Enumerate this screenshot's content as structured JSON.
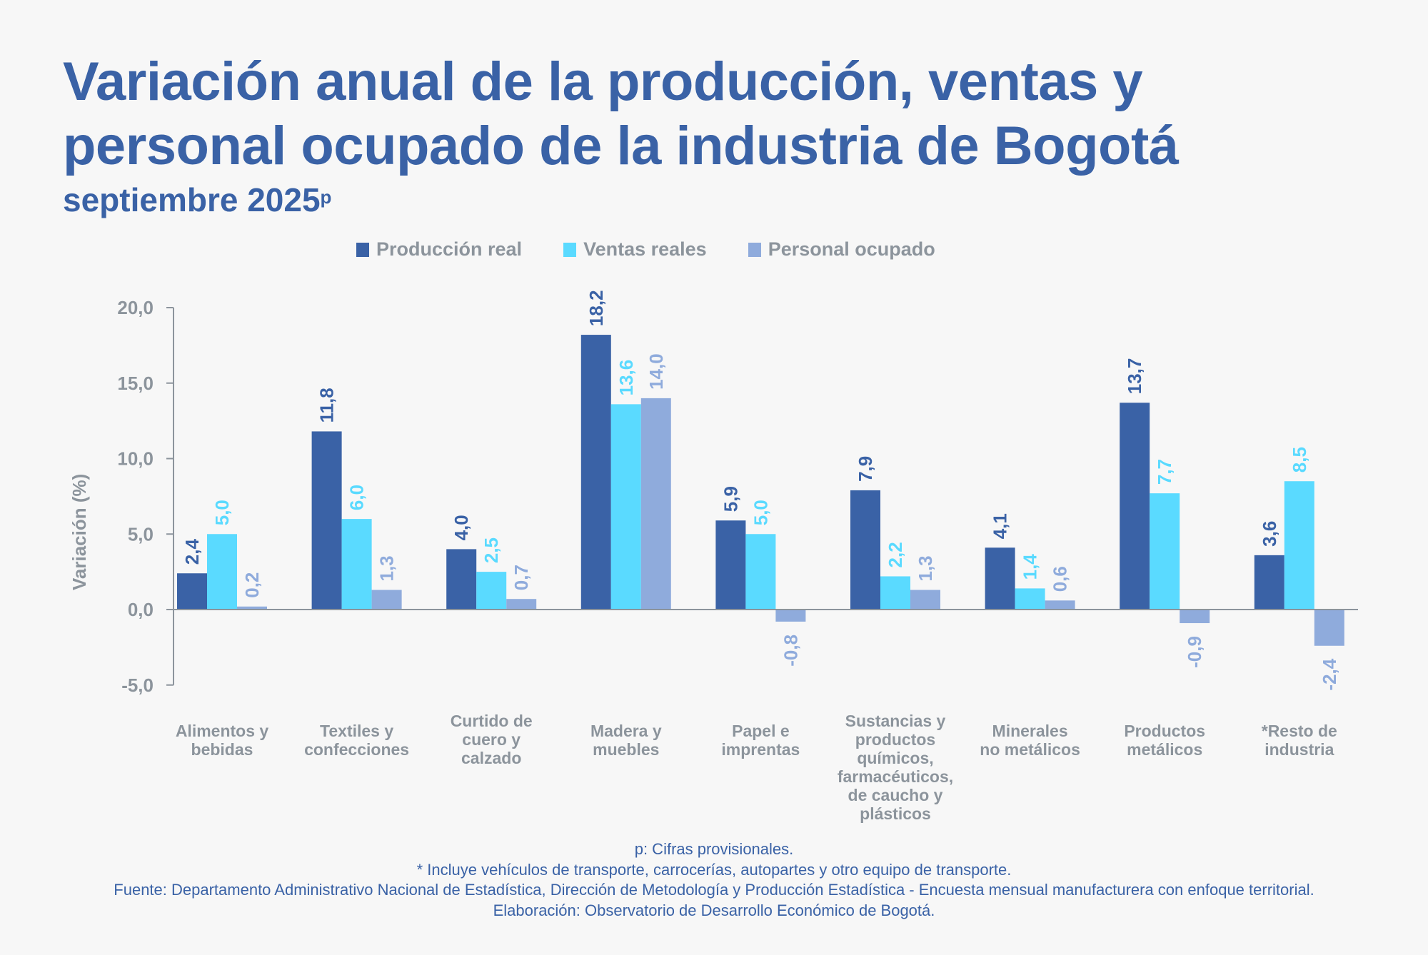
{
  "title": {
    "line1": "Variación anual de la producción, ventas y",
    "line2": "personal ocupado de la industria de Bogotá",
    "subtitle": "septiembre 2025",
    "subtitle_sup": "p"
  },
  "colors": {
    "title": "#3a62a6",
    "axis": "#8c949c",
    "series": [
      "#3a62a6",
      "#5adaff",
      "#8fabdc"
    ]
  },
  "chart_data": {
    "type": "bar",
    "title": "Variación anual de la producción, ventas y personal ocupado de la industria de Bogotá",
    "subtitle": "septiembre 2025p",
    "xlabel": "",
    "ylabel": "Variación (%)",
    "ylim": [
      -5,
      20
    ],
    "yticks": [
      -5,
      0,
      5,
      10,
      15,
      20
    ],
    "ytick_labels": [
      "-5,0",
      "0,0",
      "5,0",
      "10,0",
      "15,0",
      "20,0"
    ],
    "grid": false,
    "legend_position": "top-center",
    "categories": [
      [
        "Alimentos y",
        "bebidas"
      ],
      [
        "Textiles y",
        "confecciones"
      ],
      [
        "Curtido de",
        "cuero y",
        "calzado"
      ],
      [
        "Madera y",
        "muebles"
      ],
      [
        "Papel e",
        "imprentas"
      ],
      [
        "Sustancias y",
        "productos",
        "químicos,",
        "farmacéuticos,",
        "de caucho y",
        "plásticos"
      ],
      [
        "Minerales",
        "no metálicos"
      ],
      [
        "Productos",
        "metálicos"
      ],
      [
        "*Resto de",
        "industria"
      ]
    ],
    "series": [
      {
        "name": "Producción real",
        "values": [
          2.4,
          11.8,
          4.0,
          18.2,
          5.9,
          7.9,
          4.1,
          13.7,
          3.6
        ],
        "labels": [
          "2,4",
          "11,8",
          "4,0",
          "18,2",
          "5,9",
          "7,9",
          "4,1",
          "13,7",
          "3,6"
        ]
      },
      {
        "name": "Ventas reales",
        "values": [
          5.0,
          6.0,
          2.5,
          13.6,
          5.0,
          2.2,
          1.4,
          7.7,
          8.5
        ],
        "labels": [
          "5,0",
          "6,0",
          "2,5",
          "13,6",
          "5,0",
          "2,2",
          "1,4",
          "7,7",
          "8,5"
        ]
      },
      {
        "name": "Personal ocupado",
        "values": [
          0.2,
          1.3,
          0.7,
          14.0,
          -0.8,
          1.3,
          0.6,
          -0.9,
          -2.4
        ],
        "labels": [
          "0,2",
          "1,3",
          "0,7",
          "14,0",
          "-0,8",
          "1,3",
          "0,6",
          "-0,9",
          "-2,4"
        ]
      }
    ]
  },
  "footer": {
    "note_p": "p: Cifras provisionales.",
    "note_star": "*  Incluye vehículos de transporte, carrocerías, autopartes y otro equipo de transporte.",
    "source": "Fuente: Departamento Administrativo Nacional de Estadística, Dirección de Metodología y Producción Estadística - Encuesta mensual manufacturera con enfoque territorial.",
    "elaboration": "Elaboración: Observatorio de Desarrollo Económico de Bogotá."
  }
}
